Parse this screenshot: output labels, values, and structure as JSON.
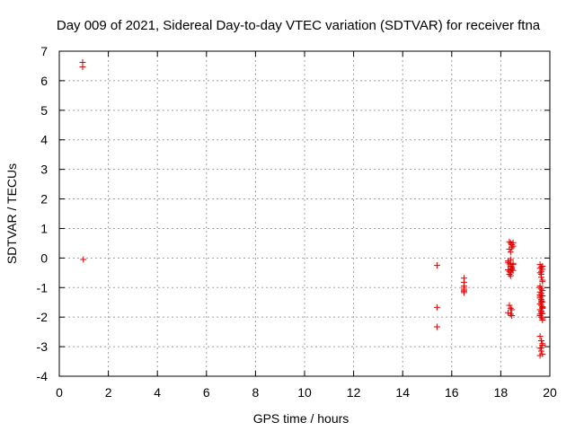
{
  "chart_data": {
    "type": "scatter",
    "title": "Day 009 of 2021, Sidereal Day-to-day VTEC variation (SDTVAR) for receiver ftna",
    "xlabel": "GPS time / hours",
    "ylabel": "SDTVAR / TECUs",
    "xlim": [
      0,
      20
    ],
    "ylim": [
      -4,
      7
    ],
    "xticks": [
      0,
      2,
      4,
      6,
      8,
      10,
      12,
      14,
      16,
      18,
      20
    ],
    "yticks": [
      -4,
      -3,
      -2,
      -1,
      0,
      1,
      2,
      3,
      4,
      5,
      6,
      7
    ],
    "grid": true,
    "legend": "none",
    "marker": "plus",
    "color": "#e00000",
    "series": [
      {
        "x": [
          0.95,
          0.95,
          0.98,
          15.4,
          15.4,
          15.4,
          16.5,
          16.5,
          16.5,
          16.5,
          16.5,
          16.5,
          16.5,
          18.35,
          18.4,
          18.45,
          18.5,
          18.35,
          18.4,
          18.45,
          18.5,
          18.3,
          18.35,
          18.4,
          18.45,
          18.5,
          18.3,
          18.35,
          18.4,
          18.45,
          18.5,
          18.35,
          18.4,
          18.45,
          18.3,
          18.4,
          18.5,
          18.35,
          18.4,
          18.45,
          18.3,
          18.4,
          18.45,
          19.6,
          19.65,
          19.7,
          19.6,
          19.65,
          19.7,
          19.6,
          19.65,
          19.7,
          19.6,
          19.65,
          19.7,
          19.6,
          19.65,
          19.7,
          19.6,
          19.65,
          19.7,
          19.6,
          19.65,
          19.7,
          19.6,
          19.65,
          19.7,
          19.6,
          19.65,
          19.7,
          19.6,
          19.65,
          19.7,
          19.6,
          19.65,
          19.7,
          19.6,
          19.65,
          19.7,
          19.6,
          19.65,
          19.7,
          19.6,
          19.65,
          19.7,
          19.6,
          19.65,
          19.7,
          19.6,
          19.65,
          19.7
        ],
        "y": [
          6.62,
          6.47,
          -0.05,
          -0.25,
          -1.67,
          -2.33,
          -0.68,
          -0.82,
          -0.95,
          -1.02,
          -1.08,
          -1.12,
          -1.17,
          0.55,
          0.5,
          0.45,
          0.4,
          0.3,
          0.2,
          0.35,
          0.52,
          -0.15,
          -0.2,
          -0.28,
          -0.35,
          -0.22,
          -0.4,
          -0.45,
          -0.5,
          -0.3,
          -0.18,
          -0.55,
          -0.6,
          -0.38,
          -0.1,
          -0.05,
          -0.42,
          -1.6,
          -1.7,
          -1.75,
          -1.85,
          -1.9,
          -1.95,
          -0.22,
          -0.3,
          -0.38,
          -0.5,
          -0.65,
          -0.8,
          -0.95,
          -1.05,
          -1.1,
          -1.15,
          -1.2,
          -1.28,
          -1.35,
          -1.4,
          -1.48,
          -1.55,
          -1.6,
          -1.68,
          -1.75,
          -1.8,
          -1.88,
          -1.95,
          -2.0,
          -2.05,
          -1.25,
          -1.45,
          -1.65,
          -2.65,
          -2.8,
          -2.95,
          -3.05,
          -3.15,
          -3.25,
          -3.3,
          -3.05,
          -2.9,
          -0.35,
          -0.55,
          -0.75,
          -1.0,
          -1.85,
          -2.1,
          -1.3,
          -1.5,
          -1.7,
          -1.9,
          -0.45,
          -0.28
        ]
      }
    ]
  }
}
